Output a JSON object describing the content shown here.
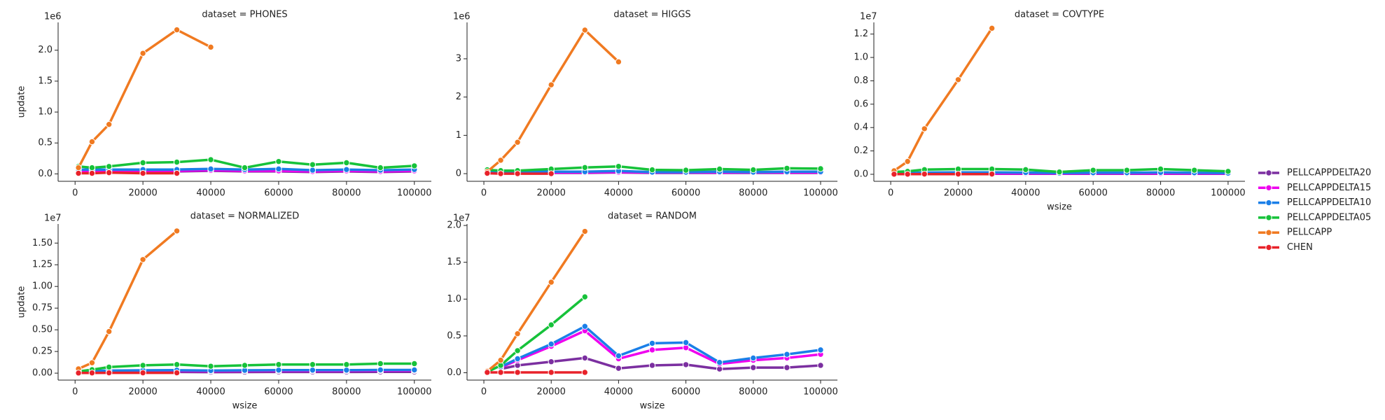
{
  "chart_data": [
    {
      "type": "line",
      "title": "dataset = PHONES",
      "ylabel": "update",
      "offset_text": "1e6",
      "x": [
        1000,
        5000,
        10000,
        20000,
        30000,
        40000,
        50000,
        60000,
        70000,
        80000,
        90000,
        100000
      ],
      "xlim": [
        -5000,
        105000
      ],
      "xticks": [
        0,
        20000,
        40000,
        60000,
        80000,
        100000
      ],
      "ylim": [
        -0.12,
        2.45
      ],
      "yticks": [
        {
          "value": 0,
          "label": "0.0"
        },
        0.5,
        {
          "value": 1,
          "label": "1.0"
        },
        1.5,
        {
          "value": 2,
          "label": "2.0"
        }
      ],
      "series": [
        {
          "name": "PELLCAPPDELTA20",
          "color": "#7b2fa0",
          "values": [
            0.03,
            0.03,
            0.04,
            0.04,
            0.04,
            0.05,
            0.04,
            0.04,
            0.03,
            0.04,
            0.03,
            0.04
          ]
        },
        {
          "name": "PELLCAPPDELTA15",
          "color": "#ee00ee",
          "values": [
            0.04,
            0.05,
            0.05,
            0.05,
            0.05,
            0.06,
            0.05,
            0.05,
            0.04,
            0.05,
            0.04,
            0.05
          ]
        },
        {
          "name": "PELLCAPPDELTA10",
          "color": "#1a7fe8",
          "values": [
            0.07,
            0.07,
            0.07,
            0.07,
            0.07,
            0.08,
            0.07,
            0.08,
            0.06,
            0.07,
            0.06,
            0.07
          ]
        },
        {
          "name": "PELLCAPPDELTA05",
          "color": "#16c23a",
          "values": [
            0.12,
            0.1,
            0.12,
            0.18,
            0.19,
            0.23,
            0.1,
            0.2,
            0.15,
            0.18,
            0.1,
            0.13
          ]
        },
        {
          "name": "PELLCAPP",
          "color": "#f07a21",
          "values": [
            0.1,
            0.52,
            0.8,
            1.95,
            2.33,
            2.05,
            null,
            null,
            null,
            null,
            null,
            null
          ]
        },
        {
          "name": "CHEN",
          "color": "#e8222a",
          "values": [
            0.01,
            0.01,
            0.02,
            0.01,
            0.01,
            null,
            null,
            null,
            null,
            null,
            null,
            null
          ]
        }
      ]
    },
    {
      "type": "line",
      "title": "dataset = HIGGS",
      "offset_text": "1e6",
      "x": [
        1000,
        5000,
        10000,
        20000,
        30000,
        40000,
        50000,
        60000,
        70000,
        80000,
        90000,
        100000
      ],
      "xlim": [
        -5000,
        105000
      ],
      "xticks": [
        0,
        20000,
        40000,
        60000,
        80000,
        100000
      ],
      "ylim": [
        -0.2,
        3.95
      ],
      "yticks": [
        0,
        1,
        2,
        3
      ],
      "series": [
        {
          "name": "PELLCAPPDELTA20",
          "color": "#7b2fa0",
          "values": [
            0.01,
            0.02,
            0.02,
            0.02,
            0.02,
            0.03,
            0.02,
            0.02,
            0.02,
            0.02,
            0.02,
            0.02
          ]
        },
        {
          "name": "PELLCAPPDELTA15",
          "color": "#ee00ee",
          "values": [
            0.02,
            0.03,
            0.03,
            0.03,
            0.03,
            0.04,
            0.03,
            0.03,
            0.03,
            0.03,
            0.03,
            0.03
          ]
        },
        {
          "name": "PELLCAPPDELTA10",
          "color": "#1a7fe8",
          "values": [
            0.04,
            0.05,
            0.05,
            0.05,
            0.05,
            0.07,
            0.04,
            0.04,
            0.05,
            0.04,
            0.05,
            0.05
          ]
        },
        {
          "name": "PELLCAPPDELTA05",
          "color": "#16c23a",
          "values": [
            0.1,
            0.08,
            0.08,
            0.12,
            0.16,
            0.19,
            0.1,
            0.09,
            0.12,
            0.1,
            0.14,
            0.13
          ]
        },
        {
          "name": "PELLCAPP",
          "color": "#f07a21",
          "values": [
            0.05,
            0.35,
            0.82,
            2.32,
            3.75,
            2.92,
            null,
            null,
            null,
            null,
            null,
            null
          ]
        },
        {
          "name": "CHEN",
          "color": "#e8222a",
          "values": [
            0.01,
            0,
            0,
            0,
            null,
            null,
            null,
            null,
            null,
            null,
            null,
            null
          ]
        }
      ]
    },
    {
      "type": "line",
      "title": "dataset = COVTYPE",
      "xlabel": "wsize",
      "offset_text": "1e7",
      "x": [
        1000,
        5000,
        10000,
        20000,
        30000,
        40000,
        50000,
        60000,
        70000,
        80000,
        90000,
        100000
      ],
      "xlim": [
        -5000,
        105000
      ],
      "xticks": [
        0,
        20000,
        40000,
        60000,
        80000,
        100000
      ],
      "ylim": [
        -0.06,
        1.3
      ],
      "yticks": [
        {
          "value": 0,
          "label": "0.0"
        },
        0.2,
        0.4,
        0.6,
        0.8,
        {
          "value": 1,
          "label": "1.0"
        },
        1.2
      ],
      "series": [
        {
          "name": "PELLCAPPDELTA20",
          "color": "#7b2fa0",
          "values": [
            0.003,
            0.004,
            0.005,
            0.005,
            0.005,
            0.005,
            0.004,
            0.004,
            0.004,
            0.005,
            0.004,
            0.004
          ]
        },
        {
          "name": "PELLCAPPDELTA15",
          "color": "#ee00ee",
          "values": [
            0.005,
            0.006,
            0.008,
            0.008,
            0.008,
            0.008,
            0.006,
            0.007,
            0.007,
            0.008,
            0.007,
            0.006
          ]
        },
        {
          "name": "PELLCAPPDELTA10",
          "color": "#1a7fe8",
          "values": [
            0.008,
            0.01,
            0.015,
            0.016,
            0.016,
            0.015,
            0.01,
            0.013,
            0.013,
            0.016,
            0.013,
            0.01
          ]
        },
        {
          "name": "PELLCAPPDELTA05",
          "color": "#16c23a",
          "values": [
            0.02,
            0.025,
            0.04,
            0.045,
            0.045,
            0.04,
            0.02,
            0.035,
            0.035,
            0.045,
            0.035,
            0.025
          ]
        },
        {
          "name": "PELLCAPP",
          "color": "#f07a21",
          "values": [
            0.03,
            0.11,
            0.39,
            0.81,
            1.25,
            null,
            null,
            null,
            null,
            null,
            null,
            null
          ]
        },
        {
          "name": "CHEN",
          "color": "#e8222a",
          "values": [
            0.001,
            0.001,
            0.002,
            0.002,
            0.002,
            null,
            null,
            null,
            null,
            null,
            null,
            null
          ]
        }
      ]
    },
    {
      "type": "line",
      "title": "dataset = NORMALIZED",
      "ylabel": "update",
      "xlabel": "wsize",
      "offset_text": "1e7",
      "x": [
        1000,
        5000,
        10000,
        20000,
        30000,
        40000,
        50000,
        60000,
        70000,
        80000,
        90000,
        100000
      ],
      "xlim": [
        -5000,
        105000
      ],
      "xticks": [
        0,
        20000,
        40000,
        60000,
        80000,
        100000
      ],
      "ylim": [
        -0.08,
        1.72
      ],
      "yticks": [
        {
          "value": 0,
          "label": "0.00"
        },
        0.25,
        {
          "value": 0.5,
          "label": "0.50"
        },
        0.75,
        {
          "value": 1,
          "label": "1.00"
        },
        1.25,
        {
          "value": 1.5,
          "label": "1.50"
        }
      ],
      "series": [
        {
          "name": "PELLCAPPDELTA20",
          "color": "#7b2fa0",
          "values": [
            0.005,
            0.01,
            0.012,
            0.013,
            0.014,
            0.012,
            0.013,
            0.014,
            0.014,
            0.014,
            0.015,
            0.015
          ]
        },
        {
          "name": "PELLCAPPDELTA15",
          "color": "#ee00ee",
          "values": [
            0.01,
            0.02,
            0.025,
            0.027,
            0.028,
            0.025,
            0.027,
            0.028,
            0.028,
            0.028,
            0.03,
            0.03
          ]
        },
        {
          "name": "PELLCAPPDELTA10",
          "color": "#1a7fe8",
          "values": [
            0.015,
            0.025,
            0.03,
            0.033,
            0.035,
            0.03,
            0.033,
            0.035,
            0.035,
            0.035,
            0.037,
            0.037
          ]
        },
        {
          "name": "PELLCAPPDELTA05",
          "color": "#16c23a",
          "values": [
            0.02,
            0.04,
            0.07,
            0.09,
            0.1,
            0.08,
            0.09,
            0.1,
            0.1,
            0.1,
            0.11,
            0.11
          ]
        },
        {
          "name": "PELLCAPP",
          "color": "#f07a21",
          "values": [
            0.05,
            0.12,
            0.48,
            1.31,
            1.64,
            null,
            null,
            null,
            null,
            null,
            null,
            null
          ]
        },
        {
          "name": "CHEN",
          "color": "#e8222a",
          "values": [
            0.002,
            0.003,
            0.004,
            0.004,
            0.004,
            null,
            null,
            null,
            null,
            null,
            null,
            null
          ]
        }
      ]
    },
    {
      "type": "line",
      "title": "dataset = RANDOM",
      "xlabel": "wsize",
      "offset_text": "1e7",
      "x": [
        1000,
        5000,
        10000,
        20000,
        30000,
        40000,
        50000,
        60000,
        70000,
        80000,
        90000,
        100000
      ],
      "xlim": [
        -5000,
        105000
      ],
      "xticks": [
        0,
        20000,
        40000,
        60000,
        80000,
        100000
      ],
      "ylim": [
        -0.1,
        2.02
      ],
      "yticks": [
        {
          "value": 0,
          "label": "0.0"
        },
        0.5,
        {
          "value": 1,
          "label": "1.0"
        },
        1.5,
        {
          "value": 2,
          "label": "2.0"
        }
      ],
      "series": [
        {
          "name": "PELLCAPPDELTA20",
          "color": "#7b2fa0",
          "values": [
            null,
            0.05,
            0.1,
            0.15,
            0.2,
            0.06,
            0.1,
            0.11,
            0.05,
            0.07,
            0.07,
            0.1
          ]
        },
        {
          "name": "PELLCAPPDELTA15",
          "color": "#ee00ee",
          "values": [
            null,
            0.07,
            0.17,
            0.36,
            0.57,
            0.19,
            0.31,
            0.34,
            0.12,
            0.17,
            0.2,
            0.25
          ]
        },
        {
          "name": "PELLCAPPDELTA10",
          "color": "#1a7fe8",
          "values": [
            null,
            0.08,
            0.19,
            0.39,
            0.63,
            0.23,
            0.4,
            0.41,
            0.14,
            0.2,
            0.25,
            0.31
          ]
        },
        {
          "name": "PELLCAPPDELTA05",
          "color": "#16c23a",
          "values": [
            0.01,
            0.1,
            0.3,
            0.65,
            1.03,
            null,
            null,
            null,
            null,
            null,
            null,
            null
          ]
        },
        {
          "name": "PELLCAPP",
          "color": "#f07a21",
          "values": [
            0.02,
            0.17,
            0.53,
            1.23,
            1.92,
            null,
            null,
            null,
            null,
            null,
            null,
            null
          ]
        },
        {
          "name": "CHEN",
          "color": "#e8222a",
          "values": [
            0.005,
            0.005,
            0.005,
            0.005,
            0.005,
            null,
            null,
            null,
            null,
            null,
            null,
            null
          ]
        }
      ]
    }
  ]
}
